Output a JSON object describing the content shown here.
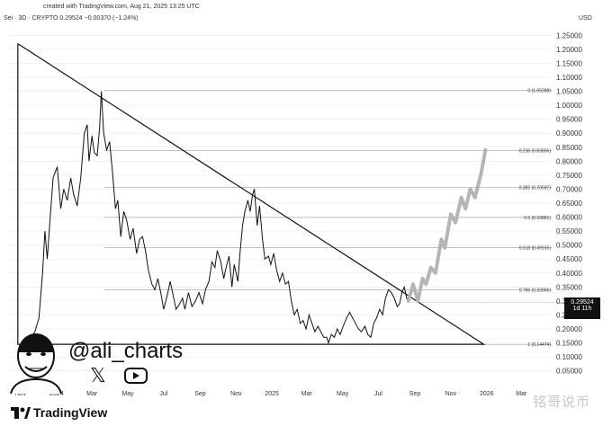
{
  "header": {
    "created_line": "created with TradingView.com, Aug 21, 2025 13:25 UTC",
    "symbol_line": "Sei · 3D · CRYPTO  0.29524  −0.00370 (−1.24%)",
    "currency": "USD"
  },
  "price_tag": {
    "price": "0.29524",
    "countdown": "1d 11h"
  },
  "overlay": {
    "handle": "@ali_charts",
    "icons": [
      "x-logo-icon",
      "youtube-icon"
    ]
  },
  "footer": {
    "brand": "TradingView",
    "watermark": "铭哥说币"
  },
  "colors": {
    "price_line": "#111111",
    "projection": "#b5b5b5",
    "grid": "#e6e6e6",
    "fib_line": "#9e9e9e",
    "background": "#ffffff"
  },
  "chart_data": {
    "type": "line",
    "title": "",
    "xlabel": "",
    "ylabel": "",
    "ylim": [
      0.02,
      1.28
    ],
    "y_ticks": [
      "1.25000",
      "1.20000",
      "1.15000",
      "1.10000",
      "1.05000",
      "1.00000",
      "0.95000",
      "0.90000",
      "0.85000",
      "0.80000",
      "0.75000",
      "0.70000",
      "0.65000",
      "0.60000",
      "0.55000",
      "0.50000",
      "0.45000",
      "0.40000",
      "0.35000",
      "0.30000",
      "0.25000",
      "0.20000",
      "0.15000",
      "0.10000",
      "0.05000"
    ],
    "x_ticks": [
      {
        "label": "Nov",
        "date": "2023-11-01"
      },
      {
        "label": "2024",
        "date": "2024-01-01"
      },
      {
        "label": "Mar",
        "date": "2024-03-01"
      },
      {
        "label": "May",
        "date": "2024-05-01"
      },
      {
        "label": "Jul",
        "date": "2024-07-01"
      },
      {
        "label": "Sep",
        "date": "2024-09-01"
      },
      {
        "label": "Nov",
        "date": "2024-11-01"
      },
      {
        "label": "2025",
        "date": "2025-01-01"
      },
      {
        "label": "Mar",
        "date": "2025-03-01"
      },
      {
        "label": "May",
        "date": "2025-05-01"
      },
      {
        "label": "Jul",
        "date": "2025-07-01"
      },
      {
        "label": "Sep",
        "date": "2025-09-01"
      },
      {
        "label": "Nov",
        "date": "2025-11-01"
      },
      {
        "label": "2026",
        "date": "2026-01-01"
      },
      {
        "label": "Mar",
        "date": "2026-03-01"
      }
    ],
    "x_range": [
      "2023-10-12",
      "2026-04-20"
    ],
    "fib_levels": [
      {
        "label": "0 (1.05288)",
        "value": 1.05288
      },
      {
        "label": "0.236 (0.83856)",
        "value": 0.83856
      },
      {
        "label": "0.382 (0.70597)",
        "value": 0.70597
      },
      {
        "label": "0.5 (0.59881)",
        "value": 0.59881
      },
      {
        "label": "0.618 (0.49165)",
        "value": 0.49165
      },
      {
        "label": "0.786 (0.33906)",
        "value": 0.33906
      },
      {
        "label": "1 (0.14474)",
        "value": 0.14474
      }
    ],
    "triangle": {
      "apex_top": {
        "date": "2023-10-27",
        "value": 1.22
      },
      "bottom_left": {
        "date": "2023-10-27",
        "value": 0.145
      },
      "bottom_right": {
        "date": "2025-12-27",
        "value": 0.145
      }
    },
    "series": [
      {
        "values_xy": [
          [
            "2023-11-15",
            0.16
          ],
          [
            "2023-11-25",
            0.19
          ],
          [
            "2023-12-02",
            0.24
          ],
          [
            "2023-12-08",
            0.4
          ],
          [
            "2023-12-12",
            0.55
          ],
          [
            "2023-12-16",
            0.45
          ],
          [
            "2023-12-21",
            0.6
          ],
          [
            "2023-12-26",
            0.74
          ],
          [
            "2024-01-02",
            0.78
          ],
          [
            "2024-01-08",
            0.63
          ],
          [
            "2024-01-13",
            0.7
          ],
          [
            "2024-01-19",
            0.66
          ],
          [
            "2024-01-25",
            0.74
          ],
          [
            "2024-01-30",
            0.68
          ],
          [
            "2024-02-05",
            0.64
          ],
          [
            "2024-02-11",
            0.74
          ],
          [
            "2024-02-17",
            0.9
          ],
          [
            "2024-02-22",
            0.93
          ],
          [
            "2024-02-25",
            0.8
          ],
          [
            "2024-03-01",
            0.89
          ],
          [
            "2024-03-05",
            0.83
          ],
          [
            "2024-03-10",
            0.82
          ],
          [
            "2024-03-14",
            0.92
          ],
          [
            "2024-03-17",
            1.05
          ],
          [
            "2024-03-21",
            0.9
          ],
          [
            "2024-03-26",
            0.84
          ],
          [
            "2024-03-31",
            0.87
          ],
          [
            "2024-04-05",
            0.76
          ],
          [
            "2024-04-10",
            0.63
          ],
          [
            "2024-04-14",
            0.66
          ],
          [
            "2024-04-19",
            0.53
          ],
          [
            "2024-04-24",
            0.62
          ],
          [
            "2024-04-29",
            0.59
          ],
          [
            "2024-05-05",
            0.52
          ],
          [
            "2024-05-10",
            0.56
          ],
          [
            "2024-05-16",
            0.47
          ],
          [
            "2024-05-21",
            0.52
          ],
          [
            "2024-05-26",
            0.53
          ],
          [
            "2024-05-31",
            0.48
          ],
          [
            "2024-06-05",
            0.41
          ],
          [
            "2024-06-11",
            0.36
          ],
          [
            "2024-06-16",
            0.34
          ],
          [
            "2024-06-21",
            0.38
          ],
          [
            "2024-06-26",
            0.33
          ],
          [
            "2024-07-01",
            0.27
          ],
          [
            "2024-07-07",
            0.32
          ],
          [
            "2024-07-12",
            0.37
          ],
          [
            "2024-07-17",
            0.32
          ],
          [
            "2024-07-22",
            0.27
          ],
          [
            "2024-07-28",
            0.29
          ],
          [
            "2024-08-02",
            0.31
          ],
          [
            "2024-08-06",
            0.27
          ],
          [
            "2024-08-12",
            0.33
          ],
          [
            "2024-08-18",
            0.28
          ],
          [
            "2024-08-24",
            0.3
          ],
          [
            "2024-08-30",
            0.33
          ],
          [
            "2024-09-05",
            0.29
          ],
          [
            "2024-09-10",
            0.34
          ],
          [
            "2024-09-16",
            0.37
          ],
          [
            "2024-09-21",
            0.44
          ],
          [
            "2024-09-26",
            0.42
          ],
          [
            "2024-09-30",
            0.48
          ],
          [
            "2024-10-06",
            0.44
          ],
          [
            "2024-10-11",
            0.38
          ],
          [
            "2024-10-15",
            0.42
          ],
          [
            "2024-10-20",
            0.46
          ],
          [
            "2024-10-25",
            0.35
          ],
          [
            "2024-10-29",
            0.43
          ],
          [
            "2024-11-04",
            0.37
          ],
          [
            "2024-11-08",
            0.48
          ],
          [
            "2024-11-12",
            0.57
          ],
          [
            "2024-11-16",
            0.62
          ],
          [
            "2024-11-21",
            0.66
          ],
          [
            "2024-11-25",
            0.62
          ],
          [
            "2024-11-29",
            0.68
          ],
          [
            "2024-12-02",
            0.7
          ],
          [
            "2024-12-07",
            0.57
          ],
          [
            "2024-12-11",
            0.64
          ],
          [
            "2024-12-16",
            0.52
          ],
          [
            "2024-12-20",
            0.45
          ],
          [
            "2024-12-26",
            0.46
          ],
          [
            "2024-12-30",
            0.43
          ],
          [
            "2025-01-04",
            0.47
          ],
          [
            "2025-01-09",
            0.41
          ],
          [
            "2025-01-14",
            0.37
          ],
          [
            "2025-01-19",
            0.4
          ],
          [
            "2025-01-24",
            0.36
          ],
          [
            "2025-01-29",
            0.37
          ],
          [
            "2025-02-03",
            0.3
          ],
          [
            "2025-02-08",
            0.25
          ],
          [
            "2025-02-13",
            0.27
          ],
          [
            "2025-02-18",
            0.22
          ],
          [
            "2025-02-23",
            0.23
          ],
          [
            "2025-02-28",
            0.2
          ],
          [
            "2025-03-05",
            0.25
          ],
          [
            "2025-03-10",
            0.22
          ],
          [
            "2025-03-15",
            0.19
          ],
          [
            "2025-03-20",
            0.21
          ],
          [
            "2025-03-25",
            0.19
          ],
          [
            "2025-03-30",
            0.17
          ],
          [
            "2025-04-04",
            0.17
          ],
          [
            "2025-04-07",
            0.15
          ],
          [
            "2025-04-12",
            0.18
          ],
          [
            "2025-04-17",
            0.17
          ],
          [
            "2025-04-22",
            0.2
          ],
          [
            "2025-04-27",
            0.18
          ],
          [
            "2025-05-02",
            0.21
          ],
          [
            "2025-05-08",
            0.24
          ],
          [
            "2025-05-13",
            0.26
          ],
          [
            "2025-05-18",
            0.24
          ],
          [
            "2025-05-23",
            0.22
          ],
          [
            "2025-05-28",
            0.2
          ],
          [
            "2025-06-02",
            0.19
          ],
          [
            "2025-06-08",
            0.21
          ],
          [
            "2025-06-13",
            0.18
          ],
          [
            "2025-06-18",
            0.17
          ],
          [
            "2025-06-23",
            0.22
          ],
          [
            "2025-06-28",
            0.24
          ],
          [
            "2025-07-03",
            0.27
          ],
          [
            "2025-07-08",
            0.25
          ],
          [
            "2025-07-13",
            0.31
          ],
          [
            "2025-07-18",
            0.34
          ],
          [
            "2025-07-23",
            0.33
          ],
          [
            "2025-07-28",
            0.31
          ],
          [
            "2025-08-02",
            0.28
          ],
          [
            "2025-08-06",
            0.29
          ],
          [
            "2025-08-10",
            0.33
          ],
          [
            "2025-08-14",
            0.35
          ],
          [
            "2025-08-18",
            0.31
          ],
          [
            "2025-08-21",
            0.29524
          ]
        ]
      },
      {
        "style": "projection",
        "values_xy": [
          [
            "2025-08-21",
            0.3
          ],
          [
            "2025-08-29",
            0.36
          ],
          [
            "2025-09-06",
            0.3
          ],
          [
            "2025-09-14",
            0.38
          ],
          [
            "2025-09-20",
            0.36
          ],
          [
            "2025-09-28",
            0.42
          ],
          [
            "2025-10-06",
            0.4
          ],
          [
            "2025-10-16",
            0.52
          ],
          [
            "2025-10-22",
            0.49
          ],
          [
            "2025-11-01",
            0.61
          ],
          [
            "2025-11-09",
            0.58
          ],
          [
            "2025-11-19",
            0.67
          ],
          [
            "2025-11-26",
            0.63
          ],
          [
            "2025-12-04",
            0.7
          ],
          [
            "2025-12-12",
            0.67
          ],
          [
            "2025-12-22",
            0.75
          ],
          [
            "2025-12-30",
            0.84
          ]
        ]
      }
    ]
  }
}
